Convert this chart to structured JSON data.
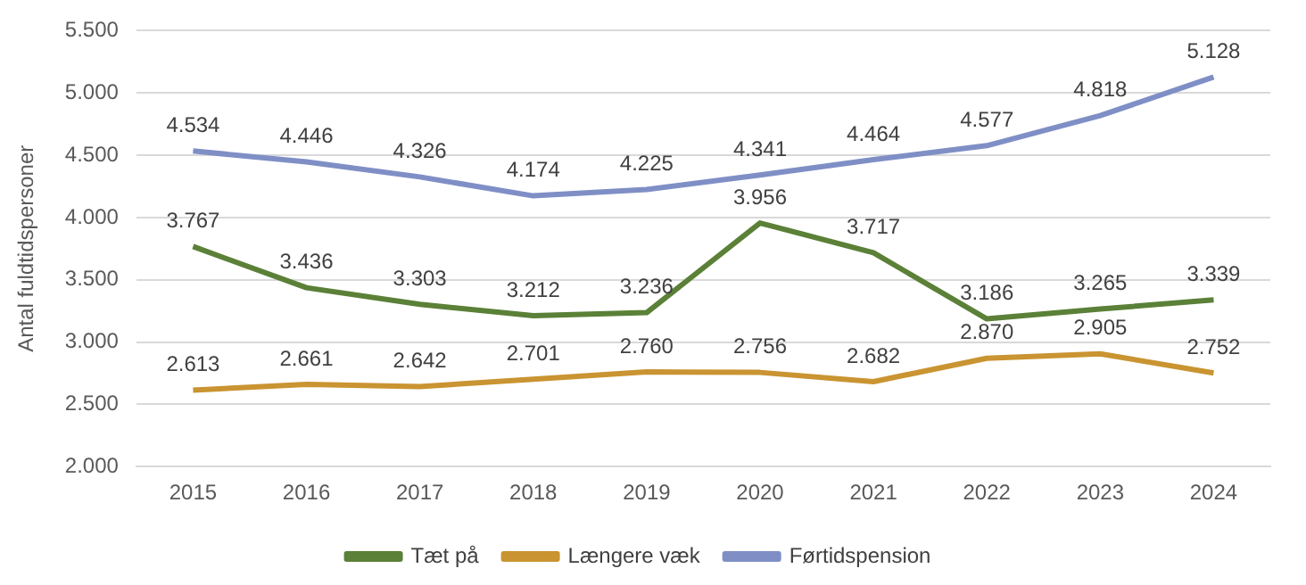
{
  "chart_data": {
    "type": "line",
    "ylabel": "Antal fuldtidspersoner",
    "categories": [
      "2015",
      "2016",
      "2017",
      "2018",
      "2019",
      "2020",
      "2021",
      "2022",
      "2023",
      "2024"
    ],
    "series": [
      {
        "name": "Tæt på",
        "color": "#5b8037",
        "values": [
          3767,
          3436,
          3303,
          3212,
          3236,
          3956,
          3717,
          3186,
          3265,
          3339
        ],
        "value_labels": [
          "3.767",
          "3.436",
          "3.303",
          "3.212",
          "3.236",
          "3.956",
          "3.717",
          "3.186",
          "3.265",
          "3.339"
        ]
      },
      {
        "name": "Længere væk",
        "color": "#c99431",
        "values": [
          2613,
          2661,
          2642,
          2701,
          2760,
          2756,
          2682,
          2870,
          2905,
          2752
        ],
        "value_labels": [
          "2.613",
          "2.661",
          "2.642",
          "2.701",
          "2.760",
          "2.756",
          "2.682",
          "2.870",
          "2.905",
          "2.752"
        ]
      },
      {
        "name": "Førtidspension",
        "color": "#7f8fc6",
        "values": [
          4534,
          4446,
          4326,
          4174,
          4225,
          4341,
          4464,
          4577,
          4818,
          5128
        ],
        "value_labels": [
          "4.534",
          "4.446",
          "4.326",
          "4.174",
          "4.225",
          "4.341",
          "4.464",
          "4.577",
          "4.818",
          "5.128"
        ]
      }
    ],
    "ylim": [
      2000,
      5500
    ],
    "yticks": [
      {
        "value": 2000,
        "label": "2.000"
      },
      {
        "value": 2500,
        "label": "2.500"
      },
      {
        "value": 3000,
        "label": "3.000"
      },
      {
        "value": 3500,
        "label": "3.500"
      },
      {
        "value": 4000,
        "label": "4.000"
      },
      {
        "value": 4500,
        "label": "4.500"
      },
      {
        "value": 5000,
        "label": "5.000"
      },
      {
        "value": 5500,
        "label": "5.500"
      }
    ],
    "grid": "y",
    "legend": "bottom",
    "marker": "none",
    "line_style": "solid"
  }
}
